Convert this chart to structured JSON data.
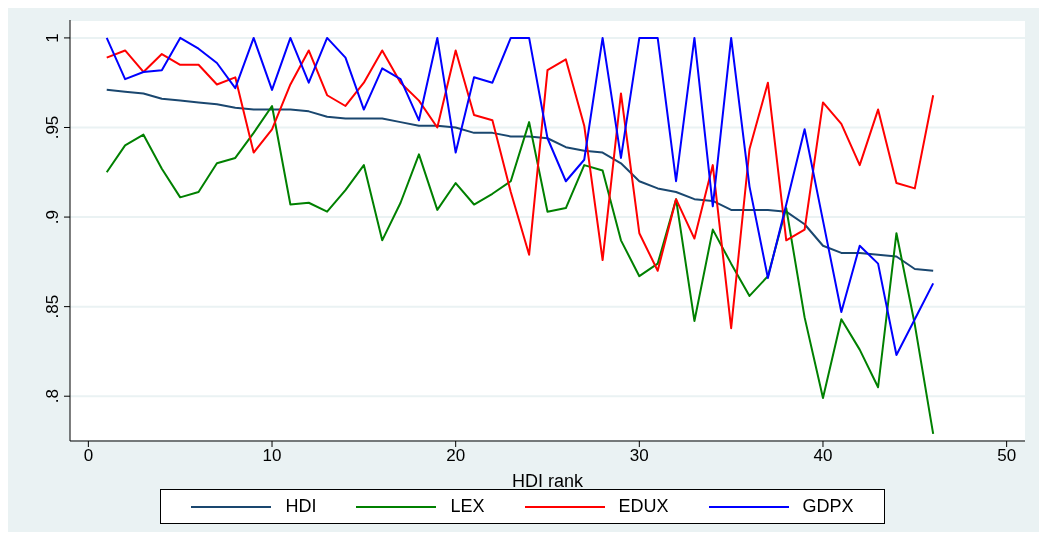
{
  "chart_data": {
    "type": "line",
    "xlabel": "HDI rank",
    "x": [
      1,
      2,
      3,
      4,
      5,
      6,
      7,
      8,
      9,
      10,
      11,
      12,
      13,
      14,
      15,
      16,
      17,
      18,
      19,
      20,
      21,
      22,
      23,
      24,
      25,
      26,
      27,
      28,
      29,
      30,
      31,
      32,
      33,
      34,
      35,
      36,
      37,
      38,
      39,
      40,
      41,
      42,
      43,
      44,
      45,
      46
    ],
    "series": [
      {
        "name": "HDI",
        "color": "#1a476f",
        "values": [
          0.971,
          0.97,
          0.969,
          0.966,
          0.965,
          0.964,
          0.963,
          0.961,
          0.96,
          0.96,
          0.96,
          0.959,
          0.956,
          0.955,
          0.955,
          0.955,
          0.953,
          0.951,
          0.951,
          0.95,
          0.947,
          0.947,
          0.945,
          0.945,
          0.944,
          0.939,
          0.937,
          0.936,
          0.93,
          0.92,
          0.916,
          0.914,
          0.91,
          0.909,
          0.904,
          0.904,
          0.904,
          0.903,
          0.896,
          0.884,
          0.88,
          0.88,
          0.879,
          0.878,
          0.871,
          0.87
        ]
      },
      {
        "name": "LEX",
        "color": "#008000",
        "values": [
          0.925,
          0.94,
          0.946,
          0.927,
          0.911,
          0.914,
          0.93,
          0.933,
          0.947,
          0.962,
          0.907,
          0.908,
          0.903,
          0.915,
          0.929,
          0.887,
          0.908,
          0.935,
          0.904,
          0.919,
          0.907,
          0.913,
          0.92,
          0.953,
          0.903,
          0.905,
          0.929,
          0.926,
          0.887,
          0.867,
          0.874,
          0.91,
          0.842,
          0.893,
          0.874,
          0.856,
          0.867,
          0.905,
          0.844,
          0.799,
          0.843,
          0.826,
          0.805,
          0.891,
          0.84,
          0.779
        ]
      },
      {
        "name": "EDUX",
        "color": "#ff0000",
        "values": [
          0.989,
          0.993,
          0.981,
          0.991,
          0.985,
          0.985,
          0.974,
          0.978,
          0.936,
          0.949,
          0.974,
          0.993,
          0.968,
          0.962,
          0.975,
          0.993,
          0.975,
          0.965,
          0.95,
          0.993,
          0.957,
          0.954,
          0.914,
          0.879,
          0.982,
          0.988,
          0.951,
          0.876,
          0.969,
          0.891,
          0.87,
          0.91,
          0.888,
          0.929,
          0.838,
          0.938,
          0.975,
          0.887,
          0.893,
          0.964,
          0.952,
          0.929,
          0.96,
          0.919,
          0.916,
          0.968
        ]
      },
      {
        "name": "GDPX",
        "color": "#0000ff",
        "values": [
          1,
          0.977,
          0.981,
          0.982,
          1,
          0.994,
          0.986,
          0.972,
          1,
          0.971,
          1,
          0.975,
          1,
          0.989,
          0.96,
          0.983,
          0.977,
          0.954,
          1,
          0.936,
          0.978,
          0.975,
          1,
          1,
          0.944,
          0.92,
          0.932,
          1,
          0.933,
          1,
          1,
          0.92,
          1,
          0.906,
          1,
          0.917,
          0.866,
          0.907,
          0.949,
          0.898,
          0.847,
          0.884,
          0.874,
          0.823,
          0.843,
          0.863
        ]
      }
    ],
    "xlim": [
      -1,
      51
    ],
    "xticks": [
      0,
      10,
      20,
      30,
      40,
      50
    ],
    "ylim": [
      0.775,
      1.01
    ],
    "yticks": [
      {
        "value": 0.8,
        "label": ".8"
      },
      {
        "value": 0.85,
        "label": ".85"
      },
      {
        "value": 0.9,
        "label": ".9"
      },
      {
        "value": 0.95,
        "label": ".95"
      },
      {
        "value": 1,
        "label": "1"
      }
    ],
    "grid": "y",
    "legend": "bottom",
    "marker": "none",
    "line_style": "solid"
  }
}
